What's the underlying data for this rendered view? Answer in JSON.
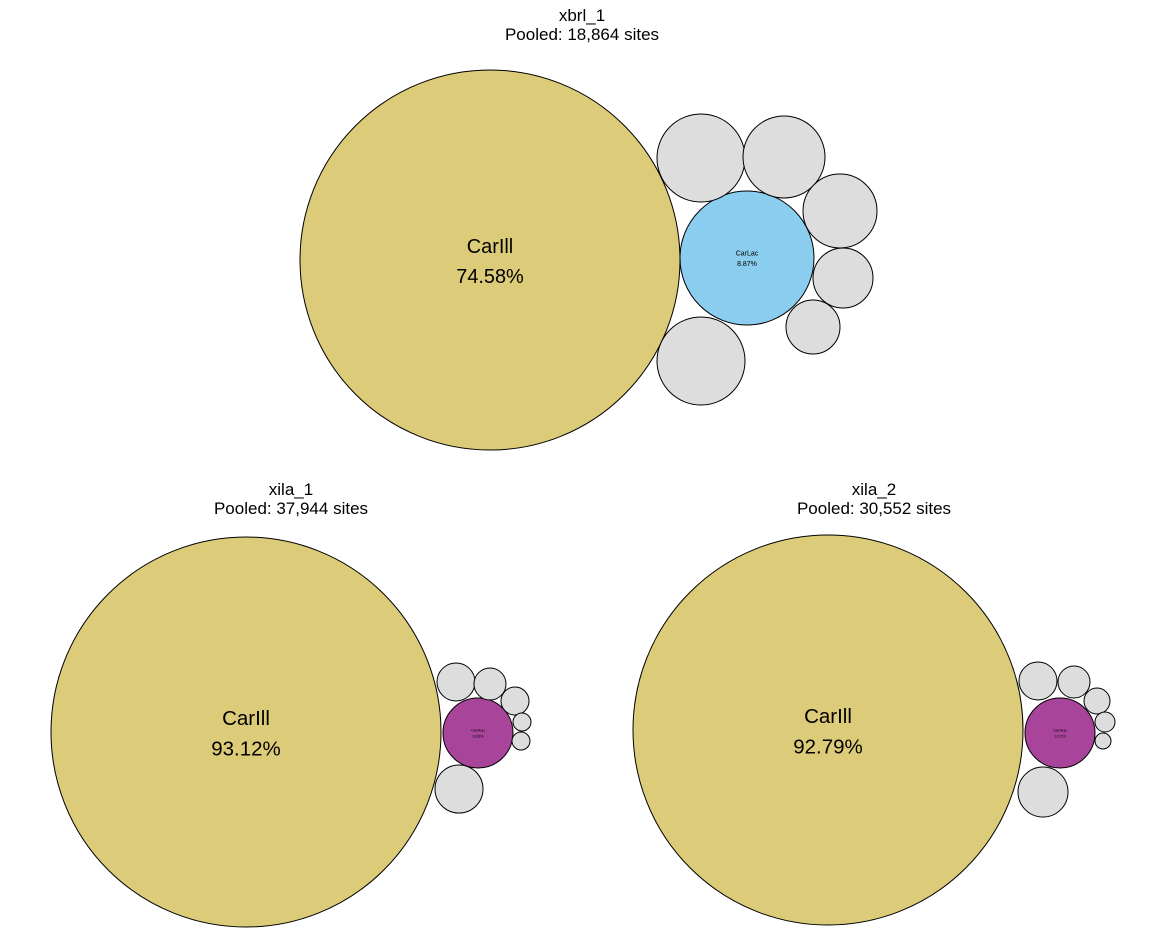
{
  "colors": {
    "carill": "#DCCB79",
    "carlac": "#8ACDEE",
    "caraqu": "#A8449A",
    "other": "#DDDDDD",
    "stroke": "#000000"
  },
  "chart_data": [
    {
      "type": "circle-packing",
      "title": "xbrl_1",
      "subtitle": "Pooled: 18,864 sites",
      "nodes": [
        {
          "label": "CarIll",
          "value_text": "74.58%",
          "value": 74.58,
          "color": "carill"
        },
        {
          "label": "CarLac",
          "value_text": "8.87%",
          "value": 8.87,
          "color": "carlac"
        },
        {
          "label": "",
          "value_text": "",
          "value": 3.1,
          "color": "other"
        },
        {
          "label": "",
          "value_text": "",
          "value": 2.8,
          "color": "other"
        },
        {
          "label": "",
          "value_text": "",
          "value": 2.4,
          "color": "other"
        },
        {
          "label": "",
          "value_text": "",
          "value": 2.9,
          "color": "other"
        },
        {
          "label": "",
          "value_text": "",
          "value": 1.5,
          "color": "other"
        },
        {
          "label": "",
          "value_text": "",
          "value": 1.1,
          "color": "other"
        }
      ]
    },
    {
      "type": "circle-packing",
      "title": "xila_1",
      "subtitle": "Pooled: 37,944 sites",
      "nodes": [
        {
          "label": "CarIll",
          "value_text": "93.12%",
          "value": 93.12,
          "color": "carill"
        },
        {
          "label": "CarAqu",
          "value_text": "3.03%",
          "value": 3.03,
          "color": "caraqu"
        },
        {
          "label": "",
          "value_text": "",
          "value": 0.95,
          "color": "other"
        },
        {
          "label": "",
          "value_text": "",
          "value": 0.78,
          "color": "other"
        },
        {
          "label": "",
          "value_text": "",
          "value": 0.55,
          "color": "other"
        },
        {
          "label": "",
          "value_text": "",
          "value": 1.5,
          "color": "other"
        },
        {
          "label": "",
          "value_text": "",
          "value": 0.25,
          "color": "other"
        },
        {
          "label": "",
          "value_text": "",
          "value": 0.2,
          "color": "other"
        }
      ]
    },
    {
      "type": "circle-packing",
      "title": "xila_2",
      "subtitle": "Pooled: 30,552 sites",
      "nodes": [
        {
          "label": "CarIll",
          "value_text": "92.79%",
          "value": 92.79,
          "color": "carill"
        },
        {
          "label": "CarAqu",
          "value_text": "3.12%",
          "value": 3.12,
          "color": "caraqu"
        },
        {
          "label": "",
          "value_text": "",
          "value": 0.95,
          "color": "other"
        },
        {
          "label": "",
          "value_text": "",
          "value": 0.7,
          "color": "other"
        },
        {
          "label": "",
          "value_text": "",
          "value": 0.45,
          "color": "other"
        },
        {
          "label": "",
          "value_text": "",
          "value": 1.6,
          "color": "other"
        },
        {
          "label": "",
          "value_text": "",
          "value": 0.25,
          "color": "other"
        },
        {
          "label": "",
          "value_text": "",
          "value": 0.2,
          "color": "other"
        }
      ]
    }
  ]
}
